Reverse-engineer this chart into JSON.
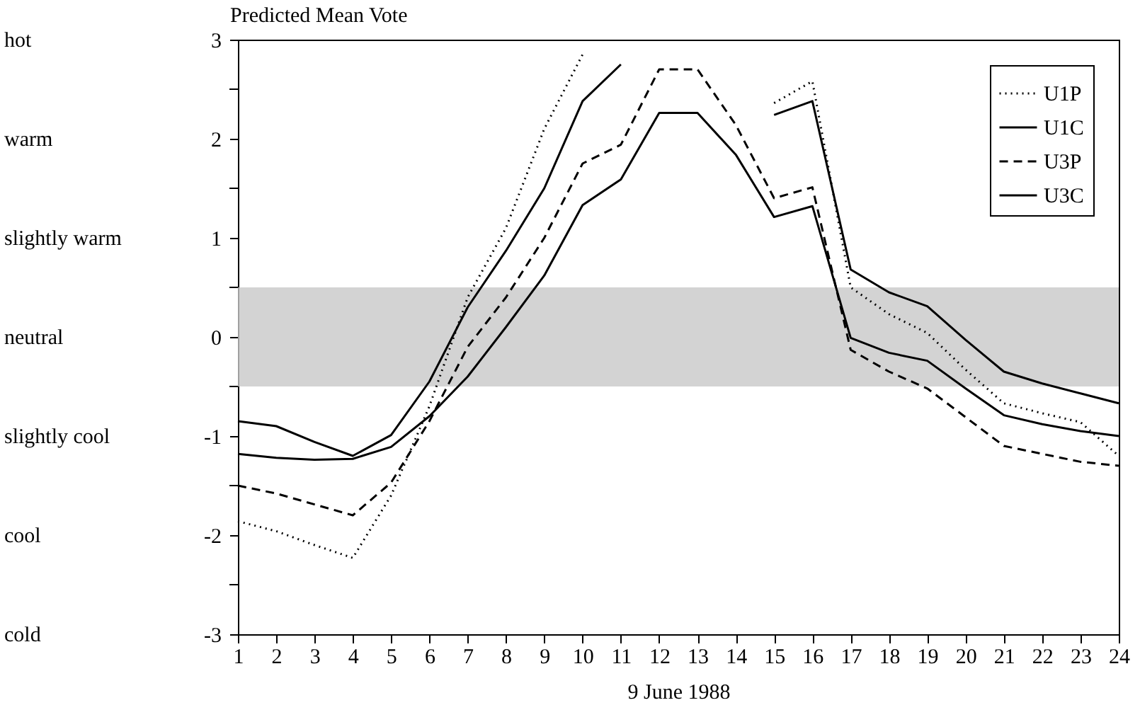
{
  "chart_data": {
    "type": "line",
    "ylabel": "Predicted Mean Vote",
    "xlabel": "9 June 1988",
    "x": [
      1,
      2,
      3,
      4,
      5,
      6,
      7,
      8,
      9,
      10,
      11,
      12,
      13,
      14,
      15,
      16,
      17,
      18,
      19,
      20,
      21,
      22,
      23,
      24
    ],
    "xlim": [
      1,
      24
    ],
    "xticks": [
      1,
      2,
      3,
      4,
      5,
      6,
      7,
      8,
      9,
      10,
      11,
      12,
      13,
      14,
      15,
      16,
      17,
      18,
      19,
      20,
      21,
      22,
      23,
      24
    ],
    "ylim": [
      -3,
      3
    ],
    "yticks": [
      -3,
      {
        "value": -2.5,
        "label": null
      },
      -2,
      {
        "value": -1.5,
        "label": null
      },
      -1,
      {
        "value": -0.5,
        "label": null
      },
      0,
      {
        "value": 0.5,
        "label": null
      },
      1,
      {
        "value": 1.5,
        "label": null
      },
      2,
      {
        "value": 2.5,
        "label": null
      },
      3
    ],
    "series": [
      {
        "name": "U1P",
        "color": "#000000",
        "line_style": "dotted",
        "values": [
          -1.86,
          -1.96,
          -2.1,
          -2.23,
          -1.6,
          -0.7,
          0.4,
          1.1,
          2.1,
          2.85,
          null,
          null,
          null,
          null,
          2.36,
          2.58,
          0.5,
          0.23,
          0.04,
          -0.33,
          -0.67,
          -0.77,
          -0.86,
          -1.2
        ]
      },
      {
        "name": "U1C",
        "color": "#000000",
        "line_style": "solid",
        "values": [
          -0.85,
          -0.9,
          -1.06,
          -1.2,
          -0.99,
          -0.45,
          0.3,
          0.87,
          1.5,
          2.38,
          2.75,
          null,
          null,
          null,
          2.24,
          2.38,
          0.68,
          0.45,
          0.31,
          -0.03,
          -0.35,
          -0.47,
          -0.57,
          -0.67
        ]
      },
      {
        "name": "U3P",
        "color": "#000000",
        "line_style": "dashed",
        "values": [
          -1.5,
          -1.58,
          -1.69,
          -1.8,
          -1.47,
          -0.85,
          -0.1,
          0.4,
          1.0,
          1.75,
          1.94,
          2.7,
          2.7,
          2.14,
          1.4,
          1.51,
          -0.13,
          -0.35,
          -0.52,
          -0.81,
          -1.1,
          -1.18,
          -1.26,
          -1.3
        ]
      },
      {
        "name": "U3C",
        "color": "#000000",
        "line_style": "solid",
        "values": [
          -1.18,
          -1.22,
          -1.24,
          -1.23,
          -1.11,
          -0.8,
          -0.4,
          0.1,
          0.62,
          1.33,
          1.59,
          2.26,
          2.26,
          1.84,
          1.21,
          1.32,
          -0.01,
          -0.16,
          -0.24,
          -0.52,
          -0.79,
          -0.88,
          -0.95,
          -1.0
        ]
      }
    ],
    "bands": [
      {
        "axis": "y",
        "from": -0.5,
        "to": 0.5,
        "color": "#c8c8c8"
      }
    ],
    "annotations": [
      "hot",
      "warm",
      "slightly warm",
      "neutral",
      "slightly cool",
      "cool",
      "cold"
    ],
    "legend": "top right",
    "grid": false
  }
}
